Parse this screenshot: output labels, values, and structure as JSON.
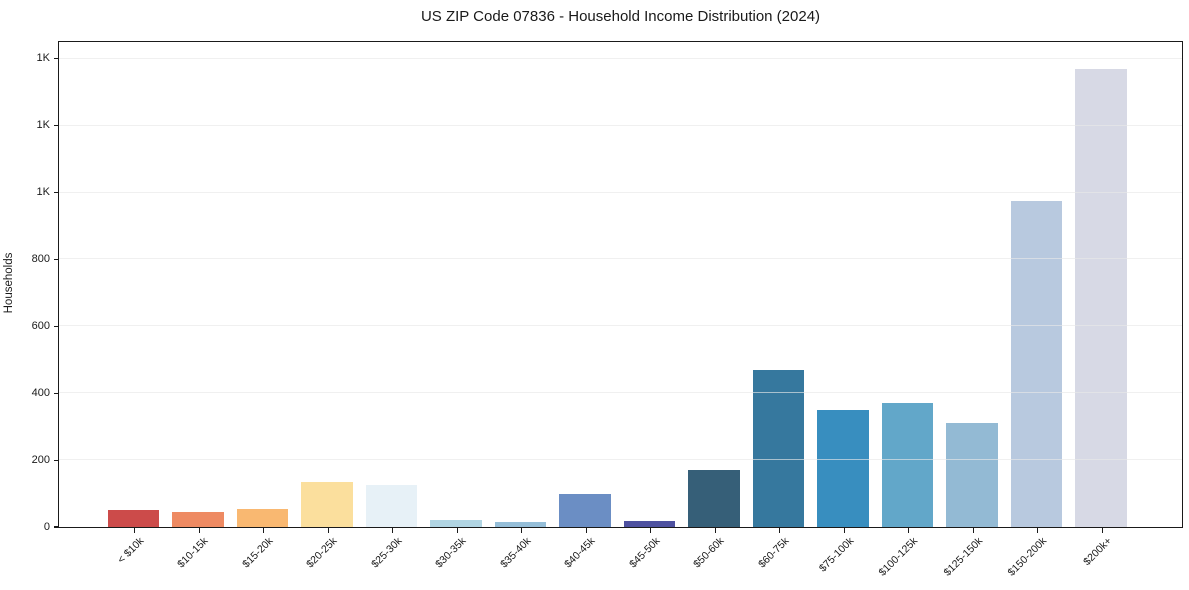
{
  "chart_data": {
    "type": "bar",
    "title": "US ZIP Code 07836 - Household Income Distribution (2024)",
    "xlabel": "",
    "ylabel": "Households",
    "categories": [
      "< $10k",
      "$10-15k",
      "$15-20k",
      "$20-25k",
      "$25-30k",
      "$30-35k",
      "$35-40k",
      "$40-45k",
      "$45-50k",
      "$50-60k",
      "$60-75k",
      "$75-100k",
      "$100-125k",
      "$125-150k",
      "$150-200k",
      "$200k+"
    ],
    "values": [
      50,
      45,
      55,
      135,
      125,
      20,
      15,
      100,
      18,
      170,
      470,
      350,
      370,
      310,
      975,
      1370
    ],
    "bar_colors": [
      "#cc4b4a",
      "#ee8a62",
      "#f9b871",
      "#fbdf9d",
      "#e7f1f7",
      "#b1d5e3",
      "#95bed8",
      "#6b8ec4",
      "#4e51a0",
      "#365f78",
      "#36789e",
      "#388ebf",
      "#62a7c9",
      "#93bad4",
      "#b8c9df",
      "#d7d9e5"
    ],
    "ylim": [
      0,
      1450
    ],
    "yticks": {
      "values": [
        0,
        200,
        400,
        600,
        800,
        1000,
        1200,
        1400
      ],
      "labels": [
        "0",
        "200",
        "400",
        "600",
        "800",
        "1K",
        "1K",
        "1K"
      ]
    },
    "grid": "horizontal",
    "legend": "none",
    "colors": {
      "background": "#ffffff",
      "axis": "#1a1a1a",
      "gridline": "#e8e8e8",
      "text": "#1a1a1a"
    }
  }
}
